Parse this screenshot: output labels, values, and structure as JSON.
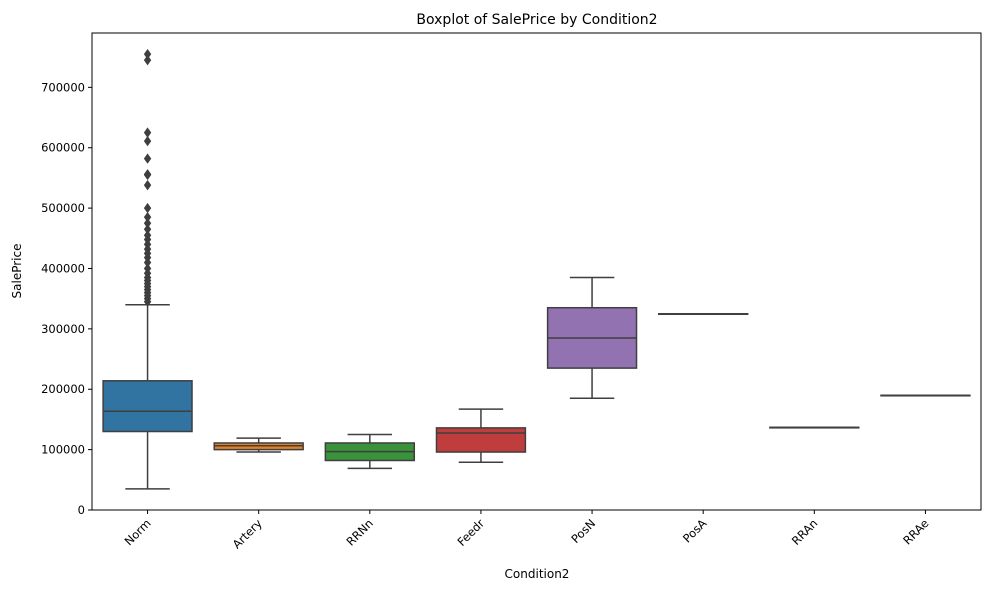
{
  "chart_data": {
    "type": "boxplot",
    "title": "Boxplot of SalePrice by Condition2",
    "xlabel": "Condition2",
    "ylabel": "SalePrice",
    "ylim": [
      0,
      790000
    ],
    "yticks": [
      0,
      100000,
      200000,
      300000,
      400000,
      500000,
      600000,
      700000
    ],
    "ytick_labels": [
      "0",
      "100000",
      "200000",
      "300000",
      "400000",
      "500000",
      "600000",
      "700000"
    ],
    "grid": false,
    "categories": [
      "Norm",
      "Artery",
      "RRNn",
      "Feedr",
      "PosN",
      "PosA",
      "RRAn",
      "RRAe"
    ],
    "boxes": [
      {
        "category": "Norm",
        "color": "#3274a1",
        "whisker_low": 34900,
        "q1": 130000,
        "median": 163500,
        "q3": 214000,
        "whisker_high": 340000,
        "outliers": [
          345000,
          350000,
          355000,
          360000,
          365000,
          370000,
          375000,
          380000,
          385000,
          392000,
          400000,
          410000,
          418000,
          425000,
          432000,
          440000,
          448000,
          455000,
          465000,
          475000,
          485000,
          500000,
          538000,
          555000,
          556000,
          582000,
          611000,
          625000,
          745000,
          755000
        ]
      },
      {
        "category": "Artery",
        "color": "#e1812c",
        "whisker_low": 96000,
        "q1": 100000,
        "median": 106500,
        "q3": 111000,
        "whisker_high": 119000,
        "outliers": []
      },
      {
        "category": "RRNn",
        "color": "#3a923a",
        "whisker_low": 69000,
        "q1": 82000,
        "median": 96750,
        "q3": 111000,
        "whisker_high": 125000,
        "outliers": []
      },
      {
        "category": "Feedr",
        "color": "#c03d3e",
        "whisker_low": 79000,
        "q1": 96000,
        "median": 127500,
        "q3": 136000,
        "whisker_high": 167000,
        "outliers": []
      },
      {
        "category": "PosN",
        "color": "#9372b2",
        "whisker_low": 185000,
        "q1": 235000,
        "median": 284875,
        "q3": 335000,
        "whisker_high": 385000,
        "outliers": []
      },
      {
        "category": "PosA",
        "color": "#845b53",
        "whisker_low": 325000,
        "q1": 325000,
        "median": 325000,
        "q3": 325000,
        "whisker_high": 325000,
        "outliers": []
      },
      {
        "category": "RRAn",
        "color": "#d684bd",
        "whisker_low": 136905,
        "q1": 136905,
        "median": 136905,
        "q3": 136905,
        "whisker_high": 136905,
        "outliers": []
      },
      {
        "category": "RRAe",
        "color": "#7f7f7f",
        "whisker_low": 190000,
        "q1": 190000,
        "median": 190000,
        "q3": 190000,
        "whisker_high": 190000,
        "outliers": []
      }
    ]
  }
}
